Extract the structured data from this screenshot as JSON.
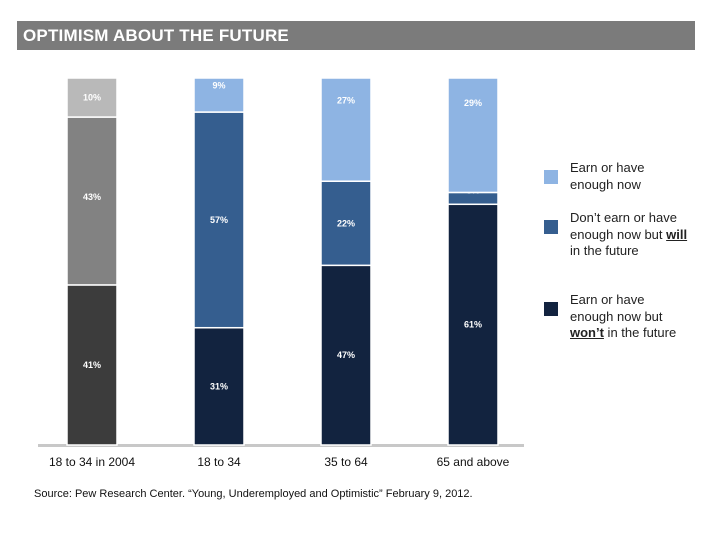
{
  "header": {
    "title": "OPTIMISM ABOUT THE FUTURE"
  },
  "chart_data": {
    "type": "bar",
    "stacked": true,
    "categories": [
      "18 to 34 in 2004",
      "18 to 34",
      "35 to 64",
      "65 and above"
    ],
    "series": [
      {
        "name": "Earn or have enough now but won’t in the future",
        "values": [
          41,
          31,
          47,
          61
        ],
        "color": "#12233f"
      },
      {
        "name": "Don’t earn or have enough now but will in the future",
        "values": [
          43,
          57,
          22,
          3
        ],
        "color": "#355e8f"
      },
      {
        "name": "Earn or have enough now",
        "values": [
          10,
          9,
          27,
          29
        ],
        "color": "#8eb4e3"
      }
    ],
    "category0_colors": [
      "#3c3c3c",
      "#828282",
      "#b9b9b9"
    ],
    "ylim": [
      0,
      100
    ],
    "grid": false,
    "legend": "right"
  },
  "legend": {
    "items": [
      {
        "parts": [
          "Earn or have enough now"
        ],
        "color": "#8eb4e3"
      },
      {
        "parts": [
          "Don’t earn or have enough now but ",
          "will",
          " in the future"
        ],
        "color": "#355e8f"
      },
      {
        "parts": [
          "Earn or have enough now but ",
          "won’t",
          " in the future"
        ],
        "color": "#12233f"
      }
    ]
  },
  "source": "Source: Pew Research Center. “Young, Underemployed and Optimistic” February 9, 2012."
}
